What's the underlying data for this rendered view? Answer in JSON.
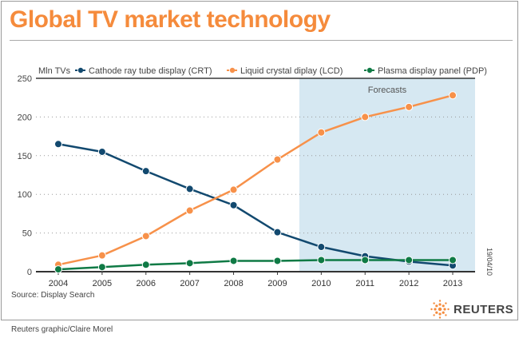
{
  "title": "Global TV market technology",
  "source": "Source: Display Search",
  "credit": "Reuters graphic/Claire Morel",
  "date_stamp": "19/04/10",
  "logo": "REUTERS",
  "chart_data": {
    "type": "line",
    "ylabel": "Mln TVs",
    "x": [
      2004,
      2005,
      2006,
      2007,
      2008,
      2009,
      2010,
      2011,
      2012,
      2013
    ],
    "ylim": [
      0,
      250
    ],
    "yticks": [
      0,
      50,
      100,
      150,
      200,
      250
    ],
    "grid": "horizontal dotted",
    "legend": "top",
    "annotation": "Forecasts",
    "forecast_from": 2010,
    "series": [
      {
        "name": "Cathode ray tube display (CRT)",
        "color": "#12496f",
        "values": [
          165,
          155,
          130,
          107,
          86,
          51,
          32,
          20,
          13,
          8
        ]
      },
      {
        "name": "Liquid crystal diplay (LCD)",
        "color": "#f7914a",
        "values": [
          9,
          21,
          46,
          79,
          106,
          145,
          180,
          200,
          213,
          228
        ]
      },
      {
        "name": "Plasma display panel (PDP)",
        "color": "#0f7a45",
        "values": [
          3,
          6,
          9,
          11,
          14,
          14,
          15,
          15,
          15,
          15
        ]
      }
    ]
  },
  "colors": {
    "title": "#f58b3c",
    "forecast_band": "#d6e8f2"
  }
}
